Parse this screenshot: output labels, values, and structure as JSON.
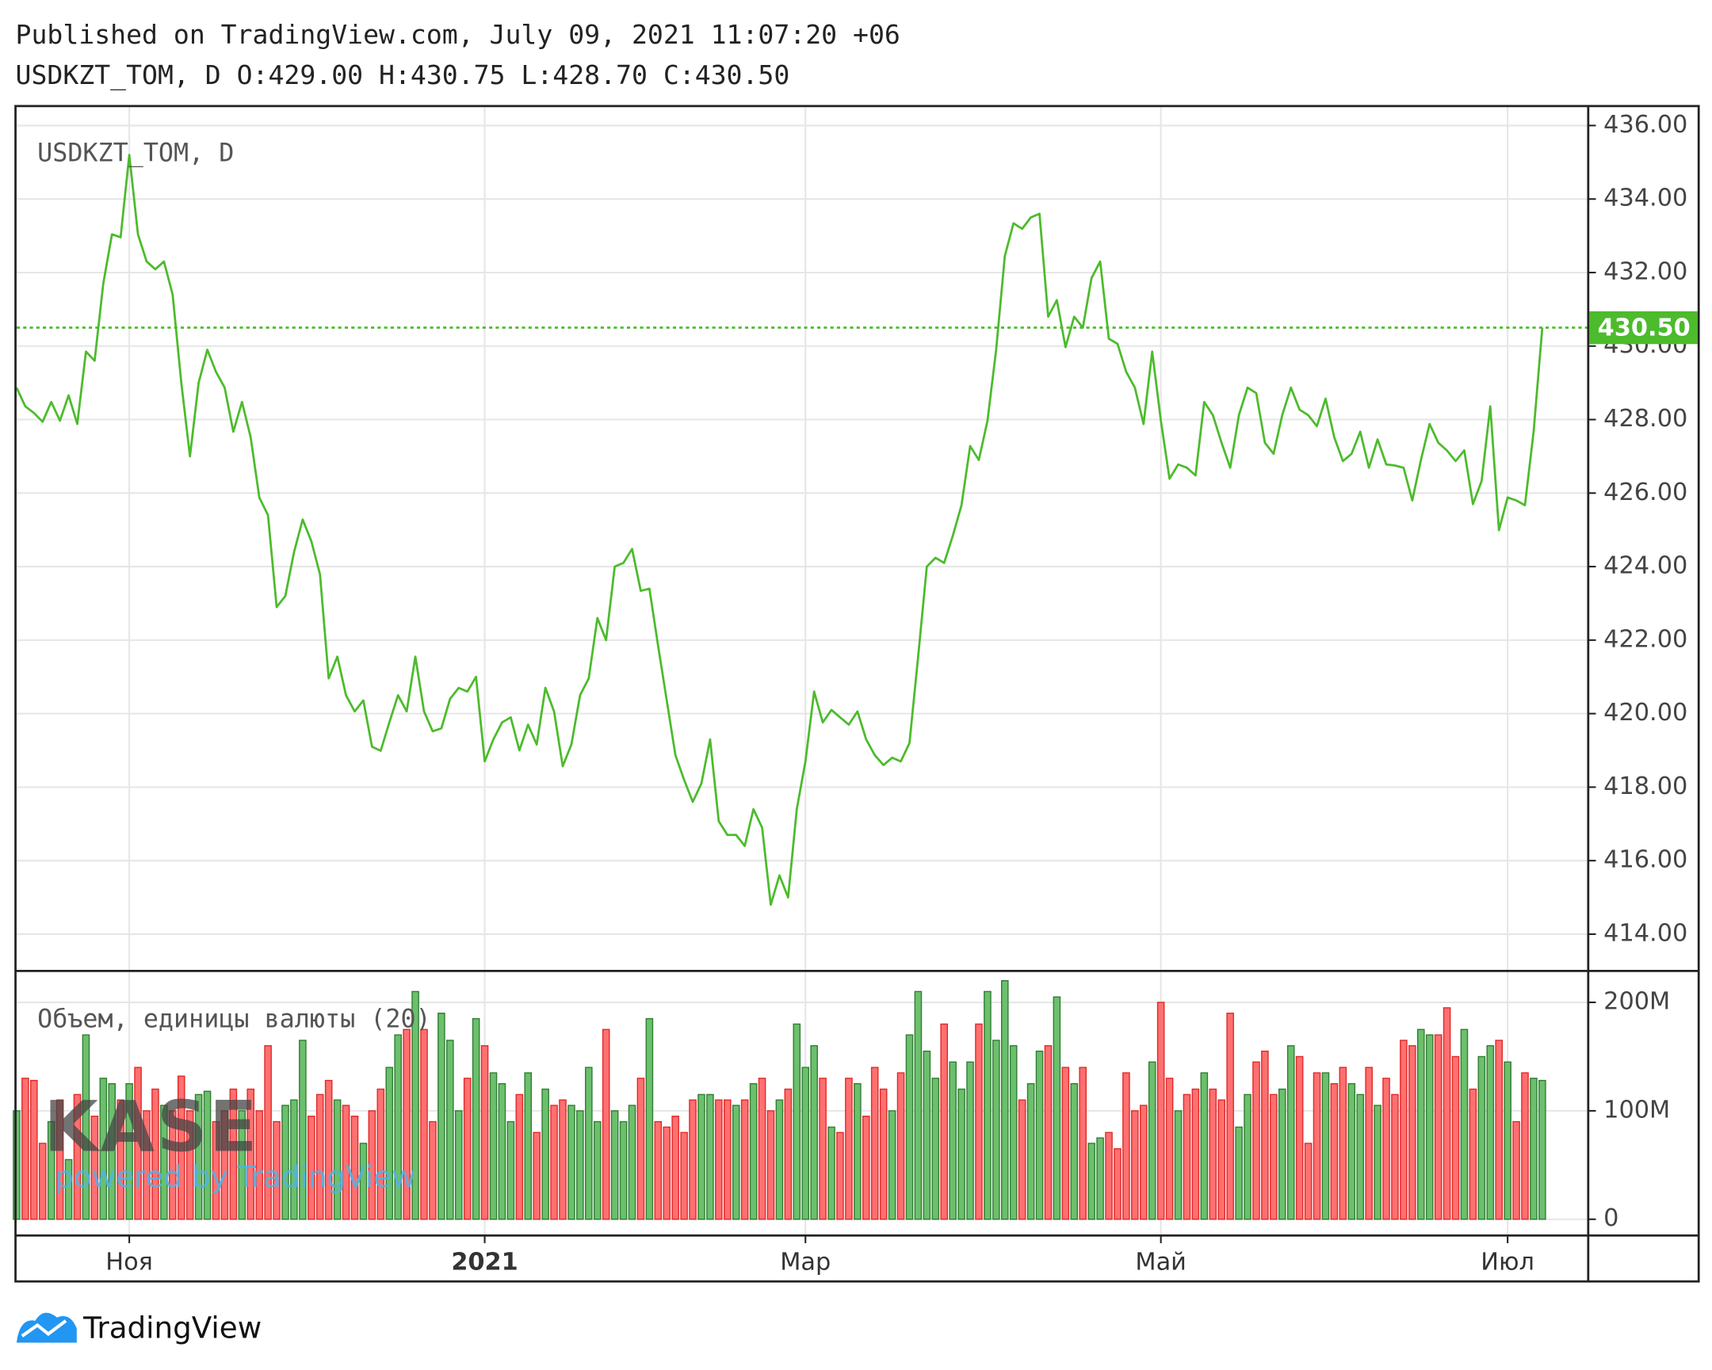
{
  "chart_data": [
    {
      "type": "line",
      "title": "Published on TradingView.com, July 09, 2021 11:07:20 +06",
      "subtitle": "USDKZT_TOM, D O:429.00 H:430.75 L:428.70 C:430.50",
      "categories": [
        null,
        null,
        null,
        null,
        null,
        null,
        null,
        null,
        null,
        null,
        null,
        null,
        null,
        "Ноя",
        null,
        null,
        null,
        null,
        null,
        null,
        null,
        null,
        null,
        null,
        null,
        null,
        null,
        null,
        null,
        null,
        null,
        null,
        null,
        null,
        null,
        null,
        null,
        null,
        null,
        null,
        null,
        null,
        null,
        null,
        null,
        null,
        null,
        null,
        null,
        null,
        null,
        null,
        null,
        null,
        "2021",
        null,
        null,
        null,
        null,
        null,
        null,
        null,
        null,
        null,
        null,
        null,
        null,
        null,
        null,
        null,
        null,
        null,
        null,
        null,
        null,
        null,
        null,
        null,
        null,
        null,
        null,
        null,
        null,
        null,
        null,
        null,
        null,
        null,
        null,
        null,
        null,
        "Мар",
        null,
        null,
        null,
        null,
        null,
        null,
        null,
        null,
        null,
        null,
        null,
        null,
        null,
        null,
        null,
        null,
        null,
        null,
        null,
        null,
        null,
        null,
        null,
        null,
        null,
        null,
        null,
        null,
        null,
        null,
        null,
        null,
        null,
        null,
        null,
        null,
        null,
        null,
        null,
        null,
        "Май",
        null,
        null,
        null,
        null,
        null,
        null,
        null,
        null,
        null,
        null,
        null,
        null,
        null,
        null,
        null,
        null,
        null,
        null,
        null,
        null,
        null,
        null,
        null,
        null,
        null,
        null,
        null,
        null,
        null,
        null,
        null,
        null,
        null,
        null,
        null,
        null,
        null,
        null,
        null,
        "Июл",
        null,
        null,
        null,
        null
      ],
      "series": [
        {
          "name": "USDKZT_TOM, D",
          "color": "#4cbb2c",
          "values": [
            428.87,
            428.36,
            428.18,
            427.94,
            428.48,
            427.97,
            428.66,
            427.88,
            429.85,
            429.6,
            431.7,
            433.04,
            432.96,
            435.2,
            433.04,
            432.3,
            432.09,
            432.3,
            431.4,
            429.0,
            427.0,
            429.0,
            429.9,
            429.3,
            428.87,
            427.67,
            428.48,
            427.52,
            425.88,
            425.4,
            422.9,
            423.2,
            424.39,
            425.28,
            424.69,
            423.79,
            420.96,
            421.55,
            420.5,
            420.06,
            420.36,
            419.1,
            418.99,
            419.76,
            420.5,
            420.06,
            421.55,
            420.06,
            419.52,
            419.6,
            420.4,
            420.7,
            420.6,
            421.0,
            418.7,
            419.3,
            419.76,
            419.9,
            419.0,
            419.7,
            419.16,
            420.7,
            420.06,
            418.57,
            419.16,
            420.5,
            420.96,
            422.6,
            422.0,
            424.0,
            424.1,
            424.48,
            423.34,
            423.4,
            421.85,
            420.36,
            418.87,
            418.2,
            417.6,
            418.1,
            419.3,
            417.07,
            416.7,
            416.7,
            416.4,
            417.4,
            416.9,
            414.8,
            415.6,
            415.0,
            417.4,
            418.7,
            420.6,
            419.76,
            420.1,
            419.9,
            419.7,
            420.06,
            419.3,
            418.87,
            418.6,
            418.8,
            418.7,
            419.2,
            421.55,
            424.0,
            424.24,
            424.1,
            424.84,
            425.67,
            427.28,
            426.9,
            427.97,
            429.9,
            432.45,
            433.34,
            433.19,
            433.5,
            433.6,
            430.8,
            431.25,
            429.97,
            430.8,
            430.5,
            431.85,
            432.3,
            430.2,
            430.06,
            429.3,
            428.87,
            427.88,
            429.85,
            427.97,
            426.39,
            426.78,
            426.69,
            426.48,
            428.48,
            428.12,
            427.37,
            426.69,
            428.12,
            428.87,
            428.72,
            427.37,
            427.07,
            428.12,
            428.87,
            428.27,
            428.12,
            427.82,
            428.57,
            427.52,
            426.87,
            427.07,
            427.67,
            426.69,
            427.46,
            426.78,
            426.75,
            426.69,
            425.8,
            426.9,
            427.88,
            427.37,
            427.16,
            426.87,
            427.16,
            425.7,
            426.33,
            428.36,
            424.99,
            425.88,
            425.8,
            425.67,
            427.67,
            430.5
          ]
        }
      ],
      "last_price_label": "430.50",
      "ylim": [
        413,
        436.5
      ],
      "yticks": [
        {
          "value": 414,
          "label": "414.00"
        },
        {
          "value": 416,
          "label": "416.00"
        },
        {
          "value": 418,
          "label": "418.00"
        },
        {
          "value": 420,
          "label": "420.00"
        },
        {
          "value": 422,
          "label": "422.00"
        },
        {
          "value": 424,
          "label": "424.00"
        },
        {
          "value": 426,
          "label": "426.00"
        },
        {
          "value": 428,
          "label": "428.00"
        },
        {
          "value": 430,
          "label": "430.00"
        },
        {
          "value": 432,
          "label": "432.00"
        },
        {
          "value": 434,
          "label": "434.00"
        },
        {
          "value": 436,
          "label": "436.00"
        }
      ],
      "grid": true
    },
    {
      "type": "bar",
      "series": [
        {
          "name": "Объем, единицы валюты (20)",
          "up_color": "#6cbf6c",
          "down_color": "#ff7070",
          "values": [
            100,
            130,
            128,
            70,
            90,
            110,
            55,
            115,
            170,
            95,
            130,
            125,
            110,
            125,
            140,
            100,
            120,
            105,
            100,
            132,
            100,
            115,
            118,
            90,
            100,
            120,
            100,
            120,
            100,
            160,
            90,
            105,
            110,
            165,
            95,
            115,
            128,
            110,
            105,
            95,
            70,
            100,
            120,
            140,
            170,
            175,
            210,
            175,
            90,
            190,
            165,
            100,
            130,
            185,
            160,
            135,
            125,
            90,
            115,
            135,
            80,
            120,
            105,
            110,
            105,
            100,
            140,
            90,
            175,
            100,
            90,
            105,
            130,
            185,
            90,
            85,
            95,
            80,
            110,
            115,
            115,
            110,
            110,
            105,
            110,
            125,
            130,
            100,
            110,
            120,
            180,
            140,
            160,
            130,
            85,
            80,
            130,
            125,
            95,
            140,
            120,
            100,
            135,
            170,
            210,
            155,
            130,
            180,
            145,
            120,
            145,
            180,
            210,
            165,
            220,
            160,
            110,
            125,
            155,
            160,
            205,
            140,
            125,
            140,
            70,
            75,
            80,
            65,
            135,
            100,
            105,
            145,
            200,
            130,
            100,
            115,
            120,
            135,
            120,
            110,
            190,
            85,
            115,
            145,
            155,
            115,
            120,
            160,
            150,
            70,
            135,
            135,
            125,
            140,
            125,
            115,
            140,
            105,
            130,
            115,
            165,
            160,
            175,
            170,
            170,
            195,
            150,
            175,
            120,
            150,
            160,
            165,
            145,
            90,
            135,
            130,
            128
          ]
        }
      ],
      "ylim": [
        -15,
        228
      ],
      "yticks": [
        0,
        {
          "value": 100,
          "label": "100M"
        },
        {
          "value": 200,
          "label": "200M"
        }
      ],
      "watermark": "KASE",
      "watermark_subtitle": "powered by TradingView"
    }
  ],
  "branding": "TradingView"
}
